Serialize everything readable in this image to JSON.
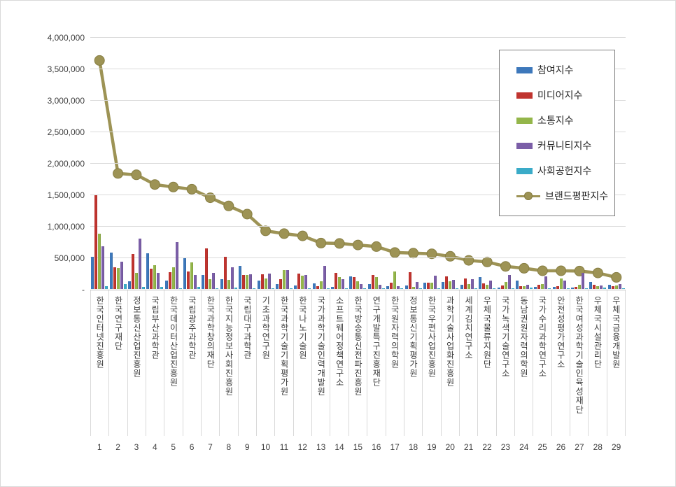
{
  "chart_data": {
    "type": "bar",
    "title": "",
    "xlabel": "",
    "ylabel": "",
    "ylim": [
      0,
      4000000
    ],
    "ytick_step": 500000,
    "ytick_labels": [
      "-",
      "500,000",
      "1,000,000",
      "1,500,000",
      "2,000,000",
      "2,500,000",
      "3,000,000",
      "3,500,000",
      "4,000,000"
    ],
    "grid": "horizontal",
    "legend_position": "top-right",
    "categories": [
      "한국인터넷진흥원",
      "한국연구재단",
      "정보통신산업진흥원",
      "국립부산과학관",
      "한국데이터산업진흥원",
      "국립광주과학관",
      "한국과학창의재단",
      "한국지능정보사회진흥원",
      "국립대구과학관",
      "기초과학연구원",
      "한국과학기술기획평가원",
      "한국나노기술원",
      "국가과학기술인력개발원",
      "소프트웨어정책연구소",
      "한국방송통신전파진흥원",
      "연구개발특구진흥재단",
      "한국원자력의학원",
      "정보통신기획평가원",
      "한국우편사업진흥원",
      "과학기술사업화진흥원",
      "세계김치연구소",
      "우체국물류지원단",
      "국가녹색기술연구소",
      "동남권원자력의학원",
      "국가수리과학연구소",
      "안전성평가연구소",
      "한국여성과학기술인육성재단",
      "우체국시설관리단",
      "우체국금융개발원"
    ],
    "ranks": [
      "1",
      "2",
      "3",
      "4",
      "5",
      "6",
      "7",
      "8",
      "9",
      "10",
      "11",
      "12",
      "13",
      "14",
      "15",
      "16",
      "17",
      "18",
      "19",
      "20",
      "21",
      "22",
      "23",
      "24",
      "25",
      "26",
      "27",
      "28",
      "29"
    ],
    "series": [
      {
        "name": "참여지수",
        "type": "bar",
        "color": "#3d78bb",
        "values": [
          510000,
          575000,
          125000,
          565000,
          130000,
          490000,
          220000,
          155000,
          370000,
          135000,
          75000,
          60000,
          85000,
          30000,
          200000,
          80000,
          45000,
          55000,
          95000,
          110000,
          65000,
          190000,
          20000,
          135000,
          30000,
          35000,
          20000,
          110000,
          65000
        ]
      },
      {
        "name": "미디어지수",
        "type": "bar",
        "color": "#c0342f",
        "values": [
          1490000,
          345000,
          555000,
          325000,
          270000,
          280000,
          640000,
          510000,
          225000,
          230000,
          150000,
          240000,
          40000,
          250000,
          190000,
          220000,
          100000,
          265000,
          95000,
          205000,
          165000,
          90000,
          55000,
          45000,
          65000,
          45000,
          30000,
          65000,
          45000
        ]
      },
      {
        "name": "소통지수",
        "type": "bar",
        "color": "#94b64a",
        "values": [
          875000,
          330000,
          250000,
          380000,
          340000,
          425000,
          155000,
          140000,
          220000,
          165000,
          305000,
          215000,
          120000,
          185000,
          120000,
          185000,
          280000,
          30000,
          95000,
          125000,
          80000,
          70000,
          110000,
          40000,
          80000,
          165000,
          65000,
          45000,
          55000
        ]
      },
      {
        "name": "커뮤니티지수",
        "type": "bar",
        "color": "#7b5ea7",
        "values": [
          680000,
          430000,
          800000,
          260000,
          740000,
          220000,
          260000,
          340000,
          235000,
          240000,
          295000,
          220000,
          370000,
          155000,
          75000,
          65000,
          40000,
          110000,
          215000,
          145000,
          150000,
          130000,
          220000,
          65000,
          205000,
          130000,
          250000,
          55000,
          80000
        ]
      },
      {
        "name": "사회공헌지수",
        "type": "bar",
        "color": "#3aabc8",
        "values": [
          40000,
          80000,
          30000,
          30000,
          10000,
          35000,
          15000,
          20000,
          10000,
          10000,
          10000,
          10000,
          10000,
          10000,
          10000,
          10000,
          10000,
          10000,
          15000,
          10000,
          10000,
          10000,
          10000,
          20000,
          10000,
          10000,
          10000,
          20000,
          10000
        ]
      },
      {
        "name": "브랜드평판지수",
        "type": "line",
        "color": "#9d9355",
        "marker_edge_color": "#877e43",
        "values": [
          3640000,
          1845000,
          1825000,
          1670000,
          1630000,
          1595000,
          1460000,
          1330000,
          1200000,
          935000,
          890000,
          855000,
          740000,
          735000,
          710000,
          685000,
          590000,
          580000,
          570000,
          530000,
          465000,
          440000,
          370000,
          340000,
          300000,
          300000,
          295000,
          265000,
          195000
        ]
      }
    ]
  }
}
